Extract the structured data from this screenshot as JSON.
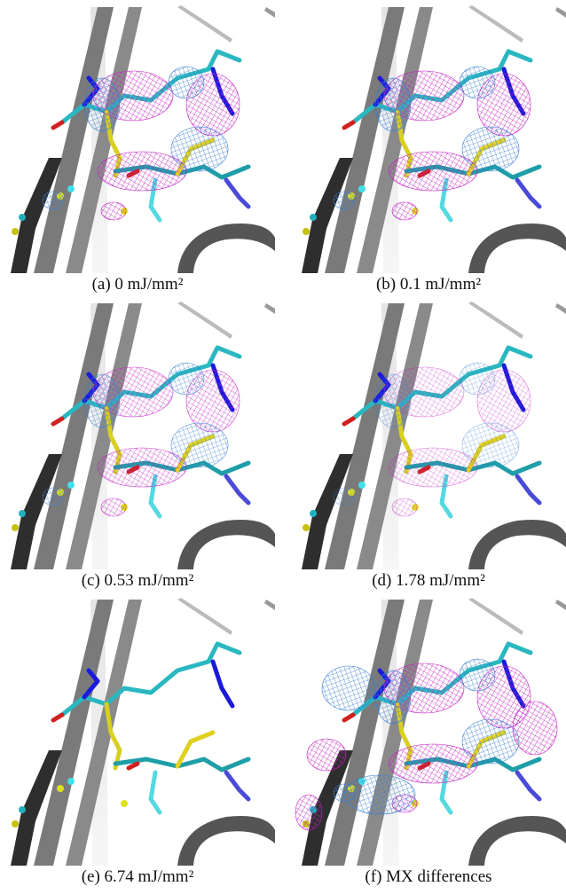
{
  "figure": {
    "panels": [
      {
        "caption": "(a) 0 mJ/mm²"
      },
      {
        "caption": "(b) 0.1 mJ/mm²"
      },
      {
        "caption": "(c) 0.53 mJ/mm²"
      },
      {
        "caption": "(d) 1.78 mJ/mm²"
      },
      {
        "caption": "(e) 6.74 mJ/mm²"
      },
      {
        "caption": "(f) MX differences"
      }
    ]
  }
}
